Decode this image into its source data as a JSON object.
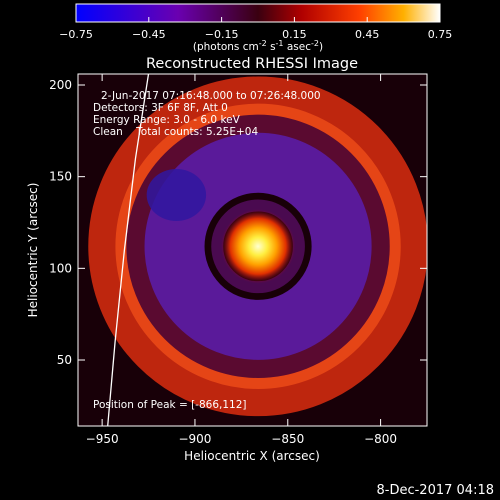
{
  "chart_data": {
    "type": "heatmap",
    "title": "Reconstructed RHESSI Image",
    "xlabel": "Heliocentric X (arcsec)",
    "ylabel": "Heliocentric Y (arcsec)",
    "xlim": [
      -963,
      -775
    ],
    "ylim": [
      14,
      206
    ],
    "xticks": [
      -950,
      -900,
      -850,
      -800
    ],
    "yticks": [
      50,
      100,
      150,
      200
    ],
    "colorbar": {
      "min": -0.75,
      "max": 0.75,
      "ticks": [
        "-0.75",
        "-0.45",
        "-0.15",
        "0.15",
        "0.45",
        "0.75"
      ],
      "label_prefix": "(photons cm",
      "label_sup1": "-2",
      "label_mid": " s",
      "label_sup2": "-1",
      "label_mid2": " asec",
      "label_sup3": "-2",
      "label_suffix": ")"
    },
    "info": {
      "time_range": "2-Jun-2017 07:16:48.000 to 07:26:48.000",
      "detectors": "Detectors: 3F 6F 8F, Att 0",
      "energy": "Energy Range: 3.0 - 6.0 keV",
      "clean": "Clean    Total counts: 5.25E+04"
    },
    "peak_label": "Position of Peak = [-866,112]",
    "peak": [
      -866,
      112
    ],
    "features": {
      "core": {
        "x": -866,
        "y": 112,
        "value": 0.75
      },
      "dark_ring": {
        "center": [
          -866,
          112
        ],
        "radius": 45,
        "value": -0.4
      },
      "bright_arc": {
        "center": [
          -866,
          112
        ],
        "radius": 78,
        "value": 0.45
      }
    },
    "limb_curve": [
      [
        -947,
        14
      ],
      [
        -943,
        60
      ],
      [
        -938,
        110
      ],
      [
        -932,
        160
      ],
      [
        -925,
        206
      ]
    ]
  },
  "footer": {
    "date": "8-Dec-2017 04:18"
  }
}
